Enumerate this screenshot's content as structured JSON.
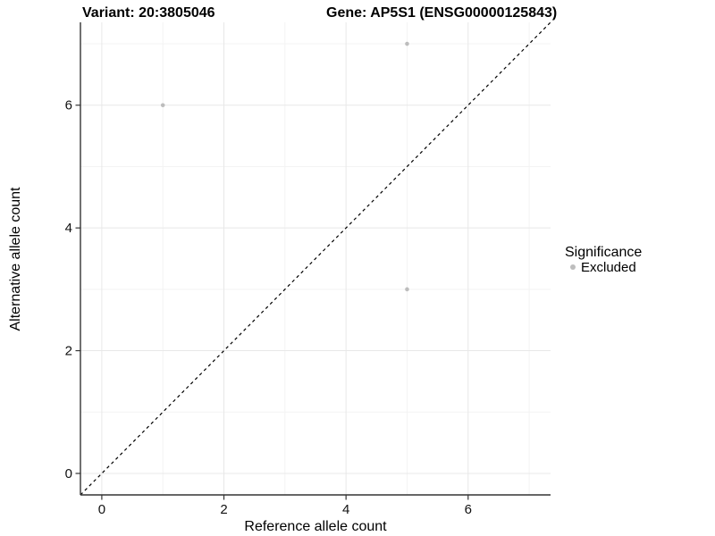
{
  "chart_data": {
    "type": "scatter",
    "title_left": "Variant: 20:3805046",
    "title_right": "Gene: AP5S1 (ENSG00000125843)",
    "xlabel": "Reference allele count",
    "ylabel": "Alternative allele count",
    "xlim": [
      -0.35,
      7.35
    ],
    "ylim": [
      -0.35,
      7.35
    ],
    "x_ticks": [
      0,
      2,
      4,
      6
    ],
    "y_ticks": [
      0,
      2,
      4,
      6
    ],
    "x_minor_ticks": [
      1,
      3,
      5,
      7
    ],
    "y_minor_ticks": [
      1,
      3,
      5,
      7
    ],
    "grid": true,
    "identity_line": {
      "style": "dashed",
      "color": "#000000",
      "slope": 1,
      "intercept": 0
    },
    "series": [
      {
        "name": "Excluded",
        "color": "#bdbdbd",
        "points": [
          {
            "x": 1,
            "y": 6
          },
          {
            "x": 5,
            "y": 7
          },
          {
            "x": 5,
            "y": 3
          }
        ]
      }
    ],
    "legend": {
      "title": "Significance",
      "position": "right",
      "entries": [
        {
          "label": "Excluded",
          "color": "#bdbdbd"
        }
      ]
    },
    "colors": {
      "background": "#ffffff",
      "grid_major": "#e8e8e8",
      "grid_minor": "#f3f3f3",
      "axis_line": "#333333",
      "point": "#bdbdbd"
    }
  }
}
